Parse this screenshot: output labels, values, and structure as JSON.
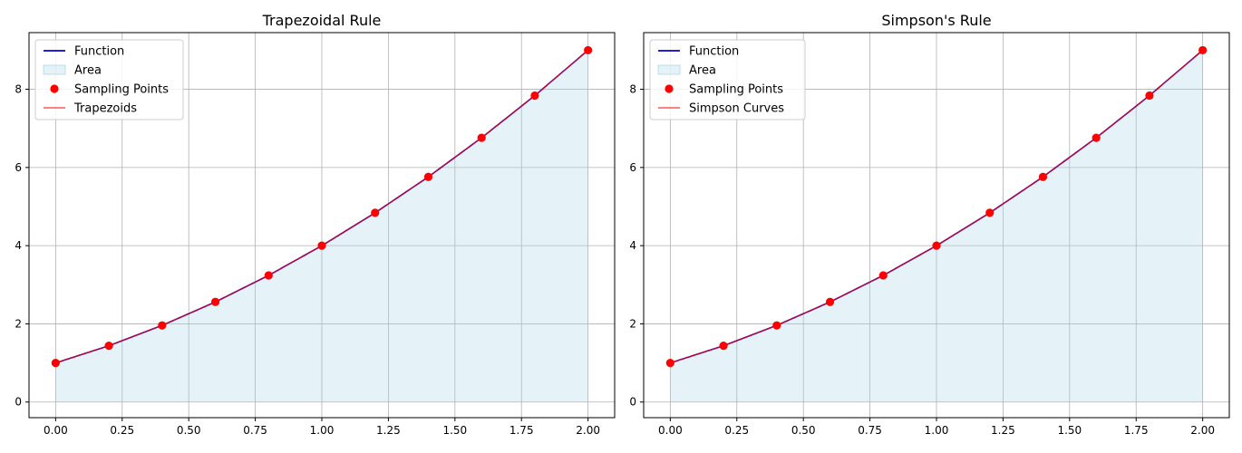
{
  "chart_data": [
    {
      "type": "line",
      "title": "Trapezoidal Rule",
      "xlabel": "",
      "ylabel": "",
      "xlim": [
        -0.1,
        2.1
      ],
      "ylim": [
        -0.4,
        9.45
      ],
      "x_ticks": [
        "0.00",
        "0.25",
        "0.50",
        "0.75",
        "1.00",
        "1.25",
        "1.50",
        "1.75",
        "2.00"
      ],
      "y_ticks": [
        "0",
        "2",
        "4",
        "6",
        "8"
      ],
      "grid": true,
      "legend_position": "top-left",
      "legend": [
        "Function",
        "Area",
        "Sampling Points",
        "Trapezoids"
      ],
      "sample_x": [
        0.0,
        0.2,
        0.4,
        0.6,
        0.8,
        1.0,
        1.2,
        1.4,
        1.6,
        1.8,
        2.0
      ],
      "sample_y": [
        1.0,
        1.44,
        1.96,
        2.56,
        3.24,
        4.0,
        4.84,
        5.76,
        6.76,
        7.84,
        9.0
      ],
      "series": [
        {
          "name": "Function",
          "color": "#0000cc"
        },
        {
          "name": "Area",
          "color": "#add8e6"
        },
        {
          "name": "Sampling Points",
          "color": "#ff0000"
        },
        {
          "name": "Trapezoids",
          "color": "#ff0000"
        }
      ]
    },
    {
      "type": "line",
      "title": "Simpson's Rule",
      "xlabel": "",
      "ylabel": "",
      "xlim": [
        -0.1,
        2.1
      ],
      "ylim": [
        -0.4,
        9.45
      ],
      "x_ticks": [
        "0.00",
        "0.25",
        "0.50",
        "0.75",
        "1.00",
        "1.25",
        "1.50",
        "1.75",
        "2.00"
      ],
      "y_ticks": [
        "0",
        "2",
        "4",
        "6",
        "8"
      ],
      "grid": true,
      "legend_position": "top-left",
      "legend": [
        "Function",
        "Area",
        "Sampling Points",
        "Simpson Curves"
      ],
      "sample_x": [
        0.0,
        0.2,
        0.4,
        0.6,
        0.8,
        1.0,
        1.2,
        1.4,
        1.6,
        1.8,
        2.0
      ],
      "sample_y": [
        1.0,
        1.44,
        1.96,
        2.56,
        3.24,
        4.0,
        4.84,
        5.76,
        6.76,
        7.84,
        9.0
      ],
      "series": [
        {
          "name": "Function",
          "color": "#0000cc"
        },
        {
          "name": "Area",
          "color": "#add8e6"
        },
        {
          "name": "Sampling Points",
          "color": "#ff0000"
        },
        {
          "name": "Simpson Curves",
          "color": "#ff0000"
        }
      ]
    }
  ]
}
